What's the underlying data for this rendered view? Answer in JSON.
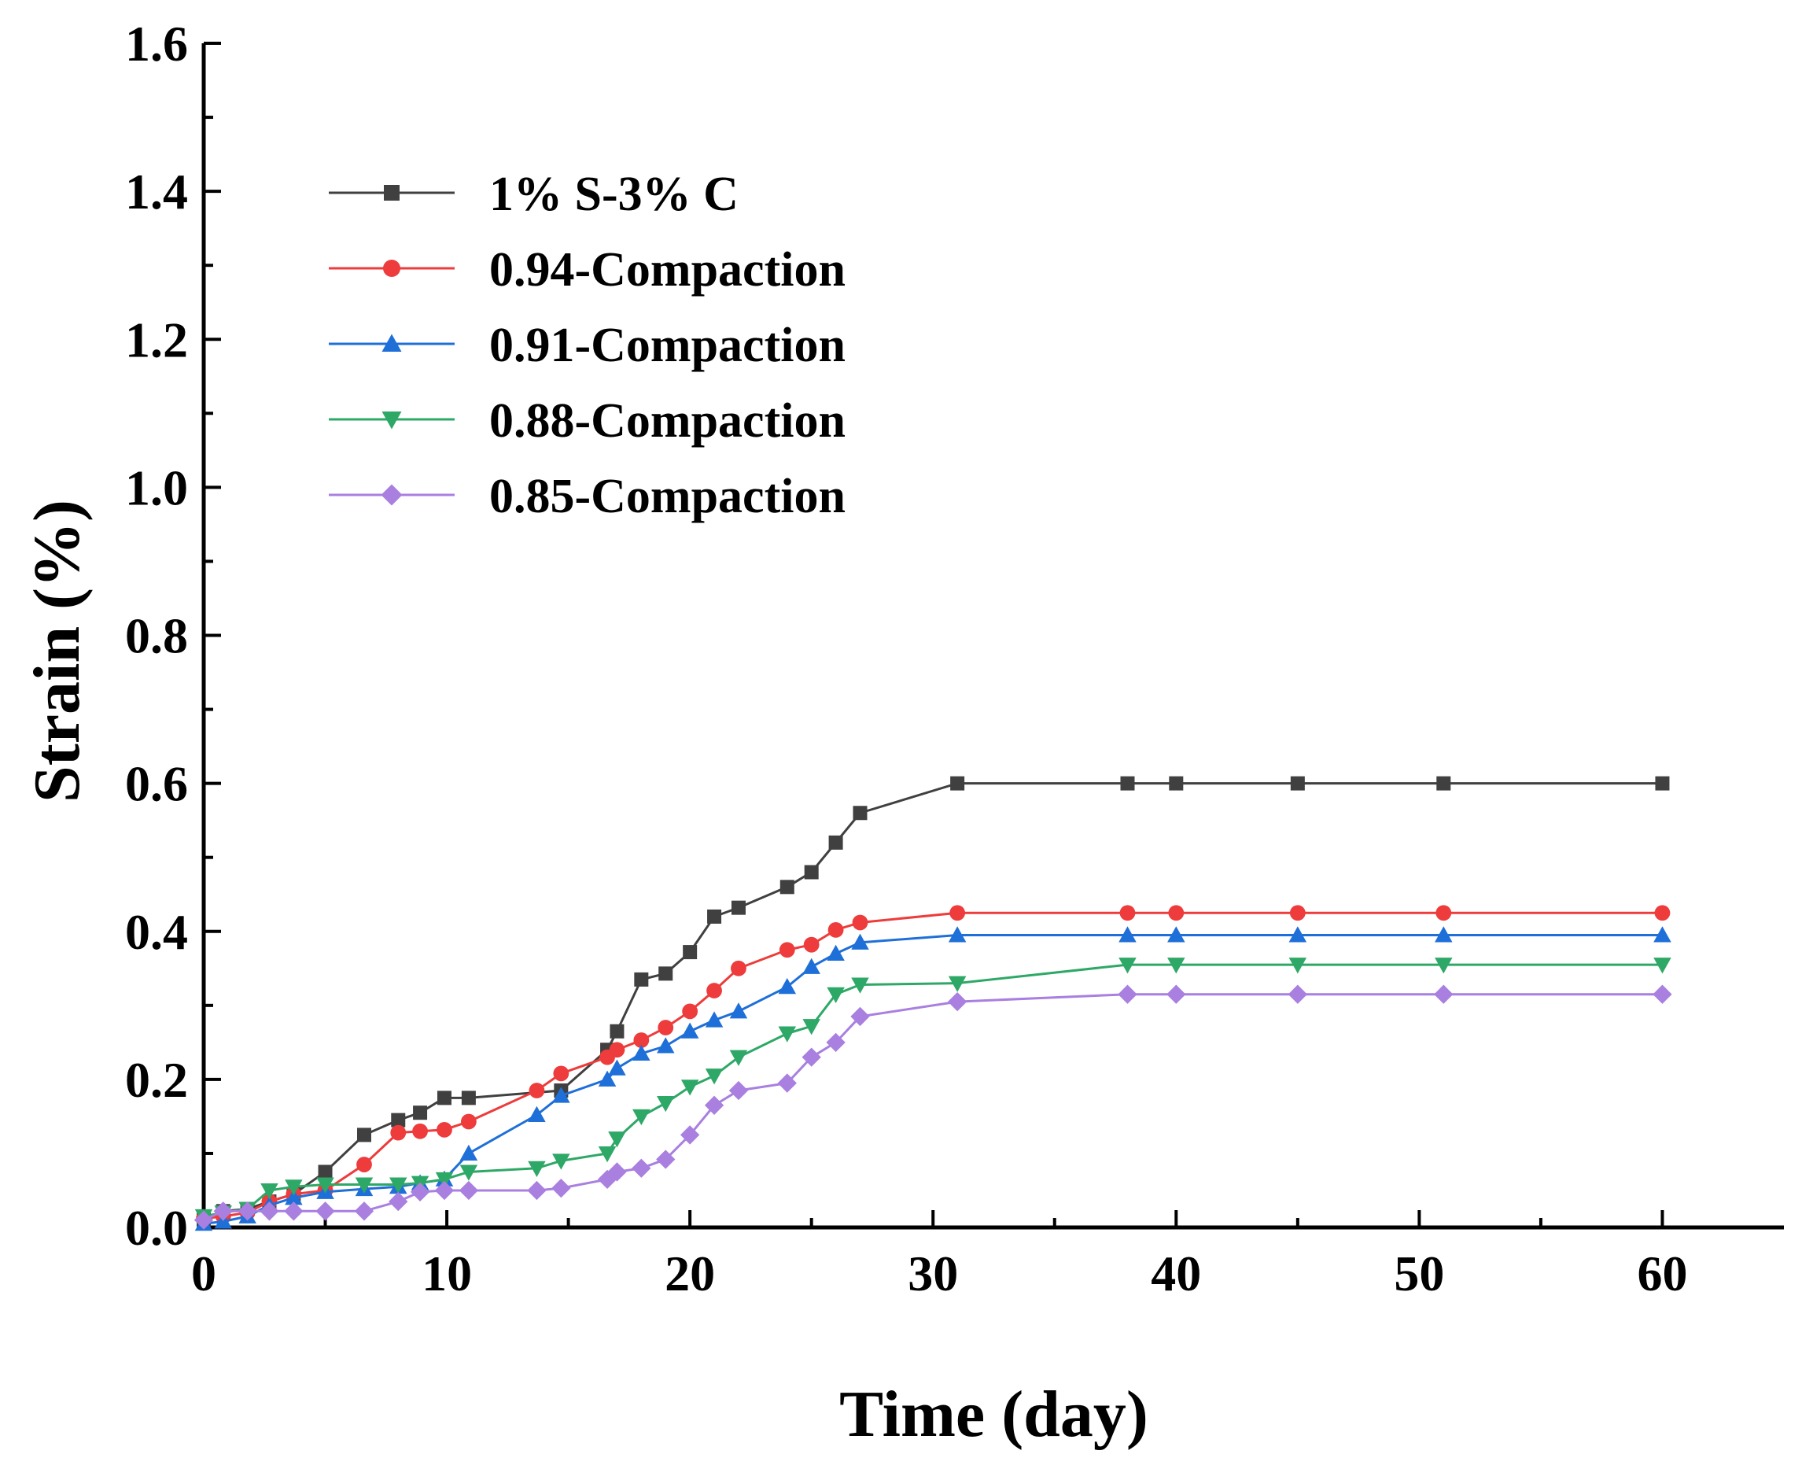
{
  "chart_data": {
    "type": "line",
    "title": "",
    "xlabel": "Time (day)",
    "ylabel": "Strain (%)",
    "xlim": [
      0,
      65
    ],
    "ylim": [
      0,
      1.6
    ],
    "xticks": [
      0,
      10,
      20,
      30,
      40,
      50,
      60
    ],
    "xtick_labels": [
      "0",
      "10",
      "20",
      "30",
      "40",
      "50",
      "60"
    ],
    "yticks": [
      0,
      0.2,
      0.4,
      0.6,
      0.8,
      1.0,
      1.2,
      1.4,
      1.6
    ],
    "ytick_labels": [
      "0.0",
      "0.2",
      "0.4",
      "0.6",
      "0.8",
      "1.0",
      "1.2",
      "1.4",
      "1.6"
    ],
    "grid": false,
    "legend_position": "upper-left",
    "series": [
      {
        "name": "1% S-3% C",
        "color": "#404040",
        "marker": "square",
        "x": [
          0,
          0.8,
          1.8,
          2.7,
          3.7,
          5,
          6.6,
          8,
          8.9,
          9.9,
          10.9,
          14.7,
          16.6,
          17,
          18,
          19,
          20,
          21,
          22,
          24,
          25,
          26,
          27,
          31,
          38,
          40,
          45,
          51,
          60
        ],
        "y": [
          0.01,
          0.022,
          0.025,
          0.035,
          0.045,
          0.075,
          0.125,
          0.145,
          0.155,
          0.175,
          0.175,
          0.185,
          0.24,
          0.265,
          0.335,
          0.343,
          0.372,
          0.42,
          0.432,
          0.46,
          0.48,
          0.52,
          0.56,
          0.6,
          0.6,
          0.6,
          0.6,
          0.6,
          0.6
        ]
      },
      {
        "name": "0.94-Compaction",
        "color": "#EE3B3B",
        "marker": "circle",
        "x": [
          0,
          0.8,
          1.8,
          2.7,
          3.7,
          5,
          6.6,
          8,
          8.9,
          9.9,
          10.9,
          13.7,
          14.7,
          16.6,
          17,
          18,
          19,
          20,
          21,
          22,
          24,
          25,
          26,
          27,
          31,
          38,
          40,
          45,
          51,
          60
        ],
        "y": [
          0.012,
          0.015,
          0.02,
          0.035,
          0.045,
          0.05,
          0.085,
          0.128,
          0.13,
          0.132,
          0.143,
          0.185,
          0.208,
          0.23,
          0.24,
          0.253,
          0.27,
          0.292,
          0.32,
          0.35,
          0.375,
          0.382,
          0.402,
          0.412,
          0.425,
          0.425,
          0.425,
          0.425,
          0.425,
          0.425
        ]
      },
      {
        "name": "0.91-Compaction",
        "color": "#1F6FD8",
        "marker": "triangle-up",
        "x": [
          0,
          0.8,
          1.8,
          2.7,
          3.7,
          5,
          6.6,
          8,
          8.9,
          9.9,
          10.9,
          13.7,
          14.7,
          16.6,
          17,
          18,
          19,
          20,
          21,
          22,
          24,
          25,
          26,
          27,
          31,
          38,
          40,
          45,
          51,
          60
        ],
        "y": [
          0.005,
          0.008,
          0.015,
          0.03,
          0.04,
          0.048,
          0.052,
          0.055,
          0.06,
          0.065,
          0.1,
          0.152,
          0.178,
          0.2,
          0.215,
          0.235,
          0.245,
          0.265,
          0.28,
          0.292,
          0.325,
          0.352,
          0.37,
          0.385,
          0.395,
          0.395,
          0.395,
          0.395,
          0.395,
          0.395
        ]
      },
      {
        "name": "0.88-Compaction",
        "color": "#2EA866",
        "marker": "triangle-down",
        "x": [
          0,
          0.8,
          1.8,
          2.7,
          3.7,
          5,
          6.6,
          8,
          8.9,
          9.9,
          10.9,
          13.7,
          14.7,
          16.6,
          17,
          18,
          19,
          20,
          21,
          22,
          24,
          25,
          26,
          27,
          31,
          38,
          40,
          45,
          51,
          60
        ],
        "y": [
          0.015,
          0.02,
          0.025,
          0.05,
          0.055,
          0.058,
          0.058,
          0.058,
          0.06,
          0.065,
          0.075,
          0.08,
          0.09,
          0.1,
          0.12,
          0.15,
          0.168,
          0.19,
          0.205,
          0.23,
          0.262,
          0.272,
          0.315,
          0.328,
          0.33,
          0.355,
          0.355,
          0.355,
          0.355,
          0.355
        ]
      },
      {
        "name": "0.85-Compaction",
        "color": "#A97FE0",
        "marker": "diamond",
        "x": [
          0,
          0.8,
          1.8,
          2.7,
          3.7,
          5,
          6.6,
          8,
          8.9,
          9.9,
          10.9,
          13.7,
          14.7,
          16.6,
          17,
          18,
          19,
          20,
          21,
          22,
          24,
          25,
          26,
          27,
          31,
          38,
          40,
          45,
          51,
          60
        ],
        "y": [
          0.01,
          0.022,
          0.022,
          0.022,
          0.022,
          0.022,
          0.022,
          0.035,
          0.048,
          0.05,
          0.05,
          0.05,
          0.053,
          0.065,
          0.075,
          0.08,
          0.092,
          0.125,
          0.165,
          0.185,
          0.195,
          0.23,
          0.25,
          0.285,
          0.305,
          0.315,
          0.315,
          0.315,
          0.315,
          0.315
        ]
      }
    ]
  }
}
